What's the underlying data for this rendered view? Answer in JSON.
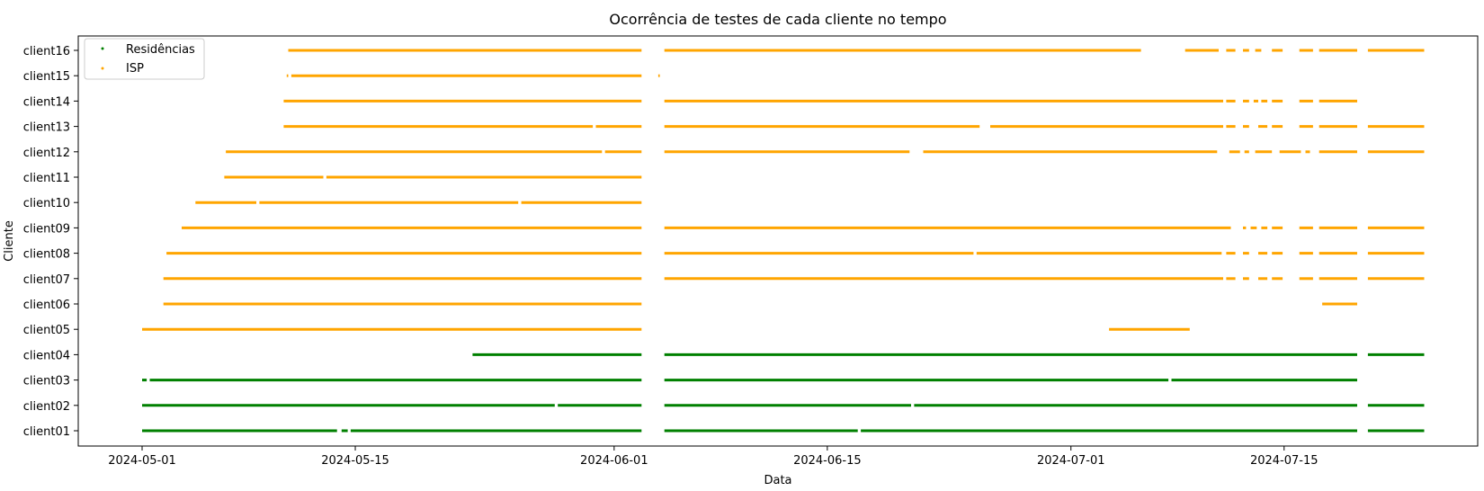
{
  "chart_data": {
    "type": "scatter",
    "title": "Ocorrência de testes de cada cliente no tempo",
    "xlabel": "Data",
    "ylabel": "Cliente",
    "x_ticks": [
      "2024-05-01",
      "2024-05-15",
      "2024-06-01",
      "2024-06-15",
      "2024-07-01",
      "2024-07-15"
    ],
    "xlim": [
      "2024-04-27",
      "2024-07-26"
    ],
    "categories": [
      "client01",
      "client02",
      "client03",
      "client04",
      "client05",
      "client06",
      "client07",
      "client08",
      "client09",
      "client10",
      "client11",
      "client12",
      "client13",
      "client14",
      "client15",
      "client16"
    ],
    "legend": {
      "position": "upper-left",
      "entries": [
        "Residências",
        "ISP"
      ]
    },
    "series_colors": {
      "Residências": "#008000",
      "ISP": "#ffa500"
    },
    "grid": false,
    "series": [
      {
        "name": "Residências",
        "client": "client01",
        "intervals": [
          [
            "2024-05-01",
            "2024-05-13.8"
          ],
          [
            "2024-05-14.1",
            "2024-05-14.5"
          ],
          [
            "2024-05-14.7",
            "2024-06-02.8"
          ],
          [
            "2024-06-04.3",
            "2024-06-17"
          ],
          [
            "2024-06-17.2",
            "2024-07-19.8"
          ],
          [
            "2024-07-20.5",
            "2024-07-24.2"
          ]
        ]
      },
      {
        "name": "Residências",
        "client": "client02",
        "intervals": [
          [
            "2024-05-01",
            "2024-05-28.1"
          ],
          [
            "2024-05-28.3",
            "2024-06-02.8"
          ],
          [
            "2024-06-04.3",
            "2024-06-20.5"
          ],
          [
            "2024-06-20.7",
            "2024-07-19.8"
          ],
          [
            "2024-07-20.5",
            "2024-07-24.2"
          ]
        ]
      },
      {
        "name": "Residências",
        "client": "client03",
        "intervals": [
          [
            "2024-05-01",
            "2024-05-01.3"
          ],
          [
            "2024-05-01.5",
            "2024-06-02.8"
          ],
          [
            "2024-06-04.3",
            "2024-07-07.4"
          ],
          [
            "2024-07-07.6",
            "2024-07-19.8"
          ]
        ]
      },
      {
        "name": "Residências",
        "client": "client04",
        "intervals": [
          [
            "2024-05-22.7",
            "2024-06-02.8"
          ],
          [
            "2024-06-04.3",
            "2024-07-19.8"
          ],
          [
            "2024-07-20.5",
            "2024-07-24.2"
          ]
        ]
      },
      {
        "name": "ISP",
        "client": "client05",
        "intervals": [
          [
            "2024-05-01",
            "2024-06-02.8"
          ],
          [
            "2024-07-03.5",
            "2024-07-08.8"
          ]
        ]
      },
      {
        "name": "ISP",
        "client": "client06",
        "intervals": [
          [
            "2024-05-02.4",
            "2024-06-02.8"
          ],
          [
            "2024-07-17.5",
            "2024-07-19.8"
          ]
        ]
      },
      {
        "name": "ISP",
        "client": "client07",
        "intervals": [
          [
            "2024-05-02.4",
            "2024-06-02.8"
          ],
          [
            "2024-06-04.3",
            "2024-07-11"
          ],
          [
            "2024-07-11.2",
            "2024-07-11.8"
          ],
          [
            "2024-07-12.3",
            "2024-07-12.7"
          ],
          [
            "2024-07-13.3",
            "2024-07-13.9"
          ],
          [
            "2024-07-14.2",
            "2024-07-14.9"
          ],
          [
            "2024-07-16",
            "2024-07-16.9"
          ],
          [
            "2024-07-17.3",
            "2024-07-19.8"
          ],
          [
            "2024-07-20.5",
            "2024-07-24.2"
          ]
        ]
      },
      {
        "name": "ISP",
        "client": "client08",
        "intervals": [
          [
            "2024-05-02.6",
            "2024-06-02.8"
          ],
          [
            "2024-06-04.3",
            "2024-06-24.6"
          ],
          [
            "2024-06-24.8",
            "2024-07-10.9"
          ],
          [
            "2024-07-11.2",
            "2024-07-11.8"
          ],
          [
            "2024-07-12.3",
            "2024-07-12.7"
          ],
          [
            "2024-07-13.3",
            "2024-07-13.9"
          ],
          [
            "2024-07-14.2",
            "2024-07-14.9"
          ],
          [
            "2024-07-16",
            "2024-07-16.9"
          ],
          [
            "2024-07-17.3",
            "2024-07-19.8"
          ],
          [
            "2024-07-20.5",
            "2024-07-24.2"
          ]
        ]
      },
      {
        "name": "ISP",
        "client": "client09",
        "intervals": [
          [
            "2024-05-03.6",
            "2024-06-02.8"
          ],
          [
            "2024-06-04.3",
            "2024-07-11.5"
          ],
          [
            "2024-07-12.3",
            "2024-07-12.5"
          ],
          [
            "2024-07-12.8",
            "2024-07-13.2"
          ],
          [
            "2024-07-13.5",
            "2024-07-13.9"
          ],
          [
            "2024-07-14.2",
            "2024-07-14.9"
          ],
          [
            "2024-07-16",
            "2024-07-16.9"
          ],
          [
            "2024-07-17.3",
            "2024-07-19.8"
          ],
          [
            "2024-07-20.5",
            "2024-07-24.2"
          ]
        ]
      },
      {
        "name": "ISP",
        "client": "client10",
        "intervals": [
          [
            "2024-05-04.5",
            "2024-05-08.5"
          ],
          [
            "2024-05-08.7",
            "2024-05-25.7"
          ],
          [
            "2024-05-25.9",
            "2024-06-02.8"
          ]
        ]
      },
      {
        "name": "ISP",
        "client": "client11",
        "intervals": [
          [
            "2024-05-06.4",
            "2024-05-12.9"
          ],
          [
            "2024-05-13.1",
            "2024-06-02.8"
          ]
        ]
      },
      {
        "name": "ISP",
        "client": "client12",
        "intervals": [
          [
            "2024-05-06.5",
            "2024-05-31.2"
          ],
          [
            "2024-05-31.4",
            "2024-06-02.8"
          ],
          [
            "2024-06-04.3",
            "2024-06-20.4"
          ],
          [
            "2024-06-21.3",
            "2024-07-10.6"
          ],
          [
            "2024-07-11.4",
            "2024-07-12.1"
          ],
          [
            "2024-07-12.4",
            "2024-07-12.7"
          ],
          [
            "2024-07-13.1",
            "2024-07-14.2"
          ],
          [
            "2024-07-14.7",
            "2024-07-16.1"
          ],
          [
            "2024-07-16.4",
            "2024-07-16.7"
          ],
          [
            "2024-07-17.3",
            "2024-07-19.8"
          ],
          [
            "2024-07-20.5",
            "2024-07-24.2"
          ]
        ]
      },
      {
        "name": "ISP",
        "client": "client13",
        "intervals": [
          [
            "2024-05-10.3",
            "2024-05-30.6"
          ],
          [
            "2024-05-30.8",
            "2024-06-02.8"
          ],
          [
            "2024-06-04.3",
            "2024-06-25"
          ],
          [
            "2024-06-25.7",
            "2024-07-11"
          ],
          [
            "2024-07-11.2",
            "2024-07-11.8"
          ],
          [
            "2024-07-12.3",
            "2024-07-12.7"
          ],
          [
            "2024-07-13.3",
            "2024-07-13.9"
          ],
          [
            "2024-07-14.2",
            "2024-07-14.9"
          ],
          [
            "2024-07-16",
            "2024-07-16.9"
          ],
          [
            "2024-07-17.3",
            "2024-07-19.8"
          ],
          [
            "2024-07-20.5",
            "2024-07-24.2"
          ]
        ]
      },
      {
        "name": "ISP",
        "client": "client14",
        "intervals": [
          [
            "2024-05-10.3",
            "2024-06-02.8"
          ],
          [
            "2024-06-04.3",
            "2024-07-11"
          ],
          [
            "2024-07-11.2",
            "2024-07-11.8"
          ],
          [
            "2024-07-12.3",
            "2024-07-12.7"
          ],
          [
            "2024-07-13",
            "2024-07-13.3"
          ],
          [
            "2024-07-13.5",
            "2024-07-13.9"
          ],
          [
            "2024-07-14.2",
            "2024-07-14.9"
          ],
          [
            "2024-07-16",
            "2024-07-16.9"
          ],
          [
            "2024-07-17.3",
            "2024-07-19.8"
          ]
        ]
      },
      {
        "name": "ISP",
        "client": "client15",
        "intervals": [
          [
            "2024-05-10.5",
            "2024-05-10.6"
          ],
          [
            "2024-05-10.8",
            "2024-06-02.8"
          ],
          [
            "2024-06-03.9",
            "2024-06-04"
          ]
        ]
      },
      {
        "name": "ISP",
        "client": "client16",
        "intervals": [
          [
            "2024-05-10.6",
            "2024-06-02.8"
          ],
          [
            "2024-06-04.3",
            "2024-07-05.6"
          ],
          [
            "2024-07-08.5",
            "2024-07-10.7"
          ],
          [
            "2024-07-11.2",
            "2024-07-11.8"
          ],
          [
            "2024-07-12.3",
            "2024-07-12.7"
          ],
          [
            "2024-07-13.1",
            "2024-07-13.5"
          ],
          [
            "2024-07-14.2",
            "2024-07-14.9"
          ],
          [
            "2024-07-16",
            "2024-07-16.9"
          ],
          [
            "2024-07-17.3",
            "2024-07-19.8"
          ],
          [
            "2024-07-20.5",
            "2024-07-24.2"
          ]
        ]
      }
    ]
  }
}
